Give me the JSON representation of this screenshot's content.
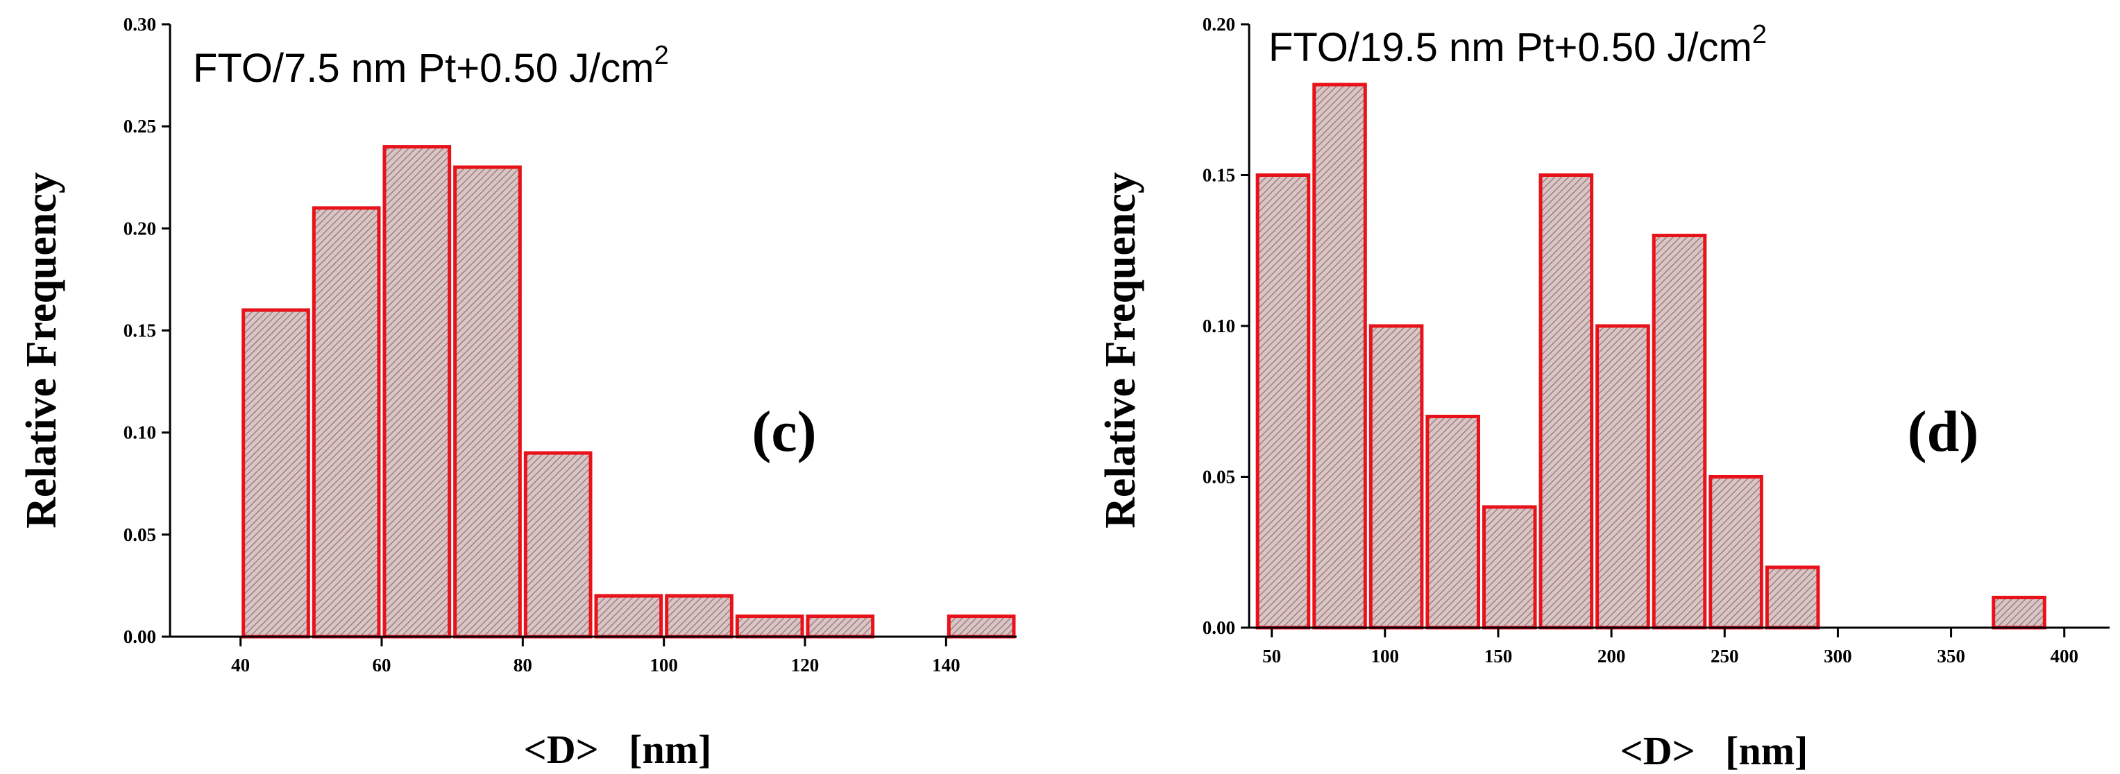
{
  "chart_data": [
    {
      "type": "bar",
      "id": "c",
      "title": "FTO/7.5 nm Pt+0.50 J/cm",
      "title_sup": "2",
      "panel_label": "(c)",
      "xlabel": "<D>   [nm]",
      "ylabel": "Relative Frequency",
      "xlim": [
        30,
        150
      ],
      "ylim": [
        0,
        0.3
      ],
      "xticks": [
        40,
        60,
        80,
        100,
        120,
        140
      ],
      "yticks": [
        "0.00",
        "0.05",
        "0.10",
        "0.15",
        "0.20",
        "0.25",
        "0.30"
      ],
      "bin_width": 10,
      "x": [
        45,
        55,
        65,
        75,
        85,
        95,
        105,
        115,
        125,
        145
      ],
      "values": [
        0.16,
        0.21,
        0.24,
        0.23,
        0.09,
        0.02,
        0.02,
        0.01,
        0.01,
        0.01
      ],
      "bar_edge_color": "#e8121b",
      "bar_fill_color": "#c9a9a9"
    },
    {
      "type": "bar",
      "id": "d",
      "title": "FTO/19.5 nm Pt+0.50 J/cm",
      "title_sup": "2",
      "panel_label": "(d)",
      "xlabel": "<D>   [nm]",
      "ylabel": "Relative Frequency",
      "xlim": [
        40,
        420
      ],
      "ylim": [
        0,
        0.2
      ],
      "xticks": [
        50,
        100,
        150,
        200,
        250,
        300,
        350,
        400
      ],
      "yticks": [
        "0.00",
        "0.05",
        "0.10",
        "0.15",
        "0.20"
      ],
      "bin_width": 25,
      "x": [
        55,
        80,
        105,
        130,
        155,
        180,
        205,
        230,
        255,
        280,
        380
      ],
      "values": [
        0.15,
        0.18,
        0.1,
        0.07,
        0.04,
        0.15,
        0.1,
        0.13,
        0.05,
        0.02,
        0.01
      ],
      "bar_edge_color": "#e8121b",
      "bar_fill_color": "#c9a9a9"
    }
  ]
}
